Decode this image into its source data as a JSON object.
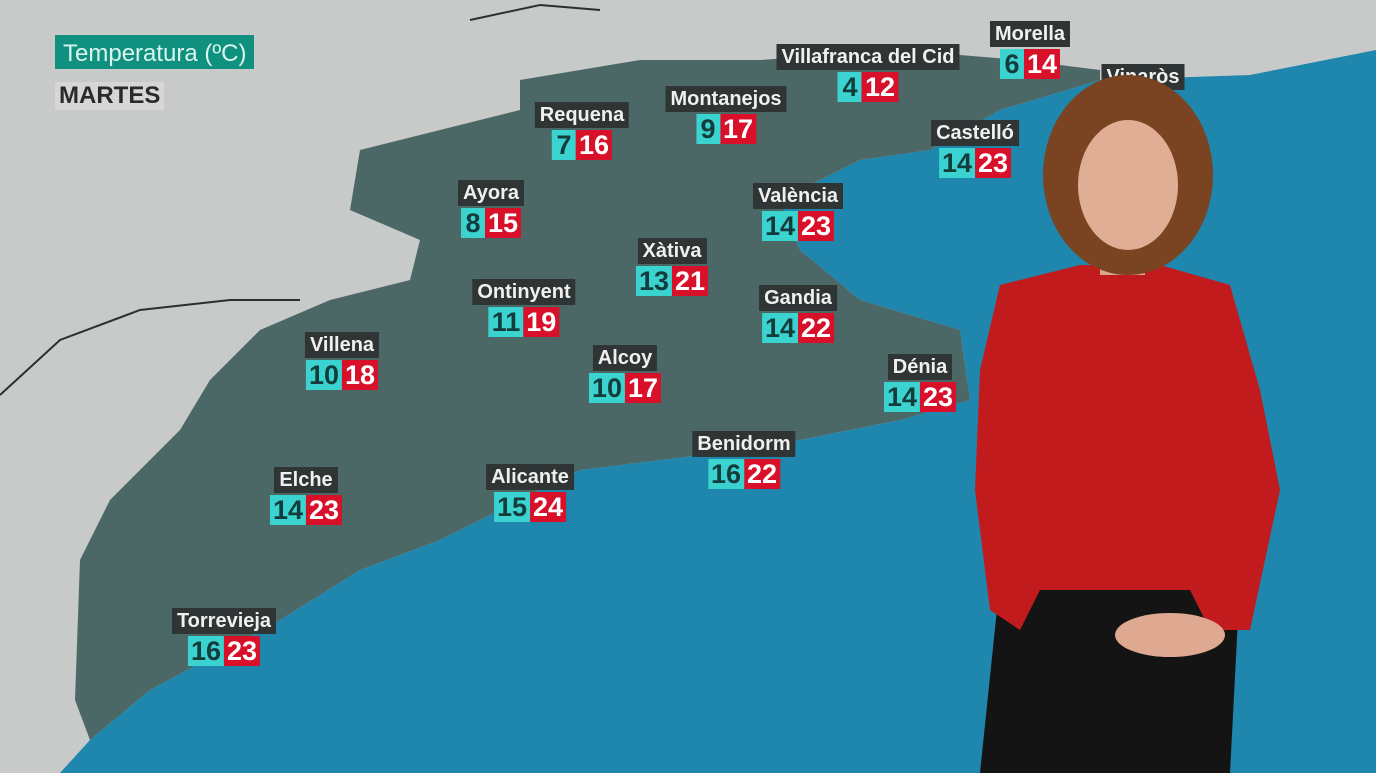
{
  "header": {
    "title": "Temperatura (ºC)",
    "day": "MARTES"
  },
  "colors": {
    "min_badge": "#3ad3cf",
    "max_badge": "#d8102a",
    "title_bg": "#10907f",
    "sea": "#1f86ad",
    "land_region": "#4c6866"
  },
  "stations": [
    {
      "name": "Morella",
      "min": "6",
      "max": "14"
    },
    {
      "name": "Vinaròs",
      "min": "",
      "max": ""
    },
    {
      "name": "Villafranca del Cid",
      "min": "4",
      "max": "12"
    },
    {
      "name": "Montanejos",
      "min": "9",
      "max": "17"
    },
    {
      "name": "Requena",
      "min": "7",
      "max": "16"
    },
    {
      "name": "Castelló",
      "min": "14",
      "max": "23"
    },
    {
      "name": "Ayora",
      "min": "8",
      "max": "15"
    },
    {
      "name": "València",
      "min": "14",
      "max": "23"
    },
    {
      "name": "Xàtiva",
      "min": "13",
      "max": "21"
    },
    {
      "name": "Ontinyent",
      "min": "11",
      "max": "19"
    },
    {
      "name": "Gandia",
      "min": "14",
      "max": "22"
    },
    {
      "name": "Villena",
      "min": "10",
      "max": "18"
    },
    {
      "name": "Alcoy",
      "min": "10",
      "max": "17"
    },
    {
      "name": "Dénia",
      "min": "14",
      "max": "23"
    },
    {
      "name": "Benidorm",
      "min": "16",
      "max": "22"
    },
    {
      "name": "Elche",
      "min": "14",
      "max": "23"
    },
    {
      "name": "Alicante",
      "min": "15",
      "max": "24"
    },
    {
      "name": "Torrevieja",
      "min": "16",
      "max": "23"
    }
  ]
}
